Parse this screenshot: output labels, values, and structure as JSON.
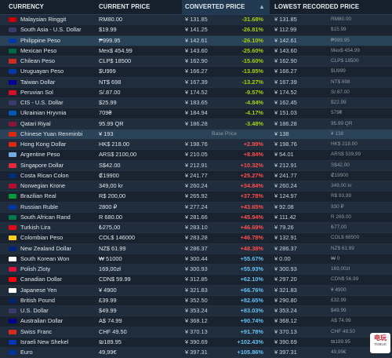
{
  "header": {
    "currency": "CURRENCY",
    "current_price": "CURRENT PRICE",
    "converted_price": "CONVERTED PRICE",
    "sort_glyph": "▲",
    "lowest_recorded_price": "LOWEST RECORDED PRICE"
  },
  "rows": [
    {
      "name": "Malaysian Ringgit",
      "flag": "#cc0001",
      "current": "RM80.00",
      "converted": "¥ 131.85",
      "diff": "-31.68%",
      "dtype": "neg",
      "low": "¥ 131.85",
      "low_orig": "RM80.00"
    },
    {
      "name": "South Asia - U.S. Dollar",
      "flag": "#3c3b6e",
      "current": "$19.99",
      "converted": "¥ 141.25",
      "diff": "-26.81%",
      "dtype": "neg",
      "low": "¥ 112.99",
      "low_orig": "$15.99"
    },
    {
      "name": "Philippine Peso",
      "flag": "#0038a8",
      "current": "₱999.95",
      "converted": "¥ 142.61",
      "diff": "-26.10%",
      "dtype": "neg",
      "low": "¥ 142.61",
      "low_orig": "₱999.95",
      "highlight": true
    },
    {
      "name": "Mexican Peso",
      "flag": "#006847",
      "current": "Mex$ 454.99",
      "converted": "¥ 143.60",
      "diff": "-25.60%",
      "dtype": "neg",
      "low": "¥ 143.60",
      "low_orig": "Mex$ 454.99"
    },
    {
      "name": "Chilean Peso",
      "flag": "#d52b1e",
      "current": "CLP$ 18500",
      "converted": "¥ 162.90",
      "diff": "-15.60%",
      "dtype": "neg",
      "low": "¥ 162.90",
      "low_orig": "CLP$ 18500"
    },
    {
      "name": "Uruguayan Peso",
      "flag": "#0038a8",
      "current": "$U999",
      "converted": "¥ 166.27",
      "diff": "-13.85%",
      "dtype": "neg",
      "low": "¥ 166.27",
      "low_orig": "$U999"
    },
    {
      "name": "Taiwan Dollar",
      "flag": "#000095",
      "current": "NT$ 698",
      "converted": "¥ 167.39",
      "diff": "-13.27%",
      "dtype": "neg",
      "low": "¥ 167.39",
      "low_orig": "NT$ 698"
    },
    {
      "name": "Peruvian Sol",
      "flag": "#d91023",
      "current": "S/.87.00",
      "converted": "¥ 174.52",
      "diff": "-9.57%",
      "dtype": "neg",
      "low": "¥ 174.52",
      "low_orig": "S/.87.00"
    },
    {
      "name": "CIS - U.S. Dollar",
      "flag": "#3c3b6e",
      "current": "$25.99",
      "converted": "¥ 183.65",
      "diff": "-4.84%",
      "dtype": "neg",
      "low": "¥ 162.45",
      "low_orig": "$22.99"
    },
    {
      "name": "Ukrainian Hryvnia",
      "flag": "#0057b7",
      "current": "709₴",
      "converted": "¥ 184.94",
      "diff": "-4.17%",
      "dtype": "neg",
      "low": "¥ 151.03",
      "low_orig": "579₴"
    },
    {
      "name": "Qatari Riyal",
      "flag": "#8a1538",
      "current": "95.99 QR",
      "converted": "¥ 186.28",
      "diff": "-3.48%",
      "dtype": "neg",
      "low": "¥ 186.28",
      "low_orig": "95.99 QR"
    },
    {
      "name": "Chinese Yuan Renminbi",
      "flag": "#de2910",
      "current": "¥ 193",
      "converted": "",
      "diff": "Base Price",
      "dtype": "base",
      "low": "¥ 138",
      "low_orig": "¥ 138",
      "highlight": true
    },
    {
      "name": "Hong Kong Dollar",
      "flag": "#de2910",
      "current": "HK$ 218.00",
      "converted": "¥ 198.76",
      "diff": "+2.99%",
      "dtype": "pos",
      "low": "¥ 198.76",
      "low_orig": "HK$ 218.00"
    },
    {
      "name": "Argentine Peso",
      "flag": "#74acdf",
      "current": "ARS$ 2100,00",
      "converted": "¥ 210.05",
      "diff": "+8.84%",
      "dtype": "pos",
      "low": "¥ 54.01",
      "low_orig": "ARS$ 539,99"
    },
    {
      "name": "Singapore Dollar",
      "flag": "#ed2939",
      "current": "S$42.00",
      "converted": "¥ 212.91",
      "diff": "+10.32%",
      "dtype": "pos",
      "low": "¥ 212.91",
      "low_orig": "S$42.00"
    },
    {
      "name": "Costa Rican Colon",
      "flag": "#002b7f",
      "current": "₡19900",
      "converted": "¥ 241.77",
      "diff": "+25.27%",
      "dtype": "pos",
      "low": "¥ 241.77",
      "low_orig": "₡19900"
    },
    {
      "name": "Norwegian Krone",
      "flag": "#ba0c2f",
      "current": "349,00 kr",
      "converted": "¥ 260.24",
      "diff": "+34.84%",
      "dtype": "pos",
      "low": "¥ 260.24",
      "low_orig": "349,00 kr"
    },
    {
      "name": "Brazilian Real",
      "flag": "#009c3b",
      "current": "R$ 200,00",
      "converted": "¥ 265.92",
      "diff": "+37.78%",
      "dtype": "pos",
      "low": "¥ 124.97",
      "low_orig": "R$ 93,99"
    },
    {
      "name": "Russian Ruble",
      "flag": "#0039a6",
      "current": "2800 ₽",
      "converted": "¥ 277.24",
      "diff": "+43.65%",
      "dtype": "pos",
      "low": "¥ 92.08",
      "low_orig": "930 ₽"
    },
    {
      "name": "South African Rand",
      "flag": "#007a4d",
      "current": "R 680.00",
      "converted": "¥ 281.66",
      "diff": "+45.94%",
      "dtype": "pos",
      "low": "¥ 111.42",
      "low_orig": "R 269.00"
    },
    {
      "name": "Turkish Lira",
      "flag": "#e30a17",
      "current": "₺275,00",
      "converted": "¥ 283.10",
      "diff": "+46.69%",
      "dtype": "pos",
      "low": "¥ 79.26",
      "low_orig": "₺77,00"
    },
    {
      "name": "Colombian Peso",
      "flag": "#fcd116",
      "current": "COL$ 146000",
      "converted": "¥ 283.28",
      "diff": "+46.78%",
      "dtype": "pos",
      "low": "¥ 132.91",
      "low_orig": "COL$ 68500"
    },
    {
      "name": "New Zealand Dollar",
      "flag": "#00247d",
      "current": "NZ$ 61.99",
      "converted": "¥ 286.37",
      "diff": "+48.38%",
      "dtype": "pos",
      "low": "¥ 286.37",
      "low_orig": "NZ$ 61.99"
    },
    {
      "name": "South Korean Won",
      "flag": "#ffffff",
      "current": "₩ 51000",
      "converted": "¥ 300.44",
      "diff": "+55.67%",
      "dtype": "posb",
      "low": "¥ 0.00",
      "low_orig": "₩ 0"
    },
    {
      "name": "Polish Zloty",
      "flag": "#dc143c",
      "current": "169,00zł",
      "converted": "¥ 300.93",
      "diff": "+55.93%",
      "dtype": "posb",
      "low": "¥ 300.93",
      "low_orig": "169,00zł"
    },
    {
      "name": "Canadian Dollar",
      "flag": "#ff0000",
      "current": "CDN$ 59.99",
      "converted": "¥ 312.85",
      "diff": "+62.10%",
      "dtype": "posb",
      "low": "¥ 297.20",
      "low_orig": "CDN$ 56.99"
    },
    {
      "name": "Japanese Yen",
      "flag": "#ffffff",
      "current": "¥ 4900",
      "converted": "¥ 321.83",
      "diff": "+66.76%",
      "dtype": "posb",
      "low": "¥ 321.83",
      "low_orig": "¥ 4900"
    },
    {
      "name": "British Pound",
      "flag": "#012169",
      "current": "£39.99",
      "converted": "¥ 352.50",
      "diff": "+82.65%",
      "dtype": "posb",
      "low": "¥ 290.80",
      "low_orig": "£32.99"
    },
    {
      "name": "U.S. Dollar",
      "flag": "#3c3b6e",
      "current": "$49.99",
      "converted": "¥ 353.24",
      "diff": "+83.03%",
      "dtype": "posb",
      "low": "¥ 353.24",
      "low_orig": "$49.99"
    },
    {
      "name": "Australian Dollar",
      "flag": "#00008b",
      "current": "A$ 74.99",
      "converted": "¥ 368.12",
      "diff": "+90.74%",
      "dtype": "posb",
      "low": "¥ 368.12",
      "low_orig": "A$ 74.99"
    },
    {
      "name": "Swiss Franc",
      "flag": "#d52b1e",
      "current": "CHF 49.50",
      "converted": "¥ 370.13",
      "diff": "+91.78%",
      "dtype": "posb",
      "low": "¥ 370.13",
      "low_orig": "CHF 49.50"
    },
    {
      "name": "Israeli New Shekel",
      "flag": "#0038b8",
      "current": "₪189.95",
      "converted": "¥ 390.69",
      "diff": "+102.43%",
      "dtype": "posb",
      "low": "¥ 390.69",
      "low_orig": "₪189.95"
    },
    {
      "name": "Euro",
      "flag": "#003399",
      "current": "49,99€",
      "converted": "¥ 397.31",
      "diff": "+105.86%",
      "dtype": "posb",
      "low": "¥ 397.31",
      "low_orig": "49,99€"
    }
  ],
  "watermark": {
    "main": "电玩",
    "sub": "TGBUS"
  }
}
